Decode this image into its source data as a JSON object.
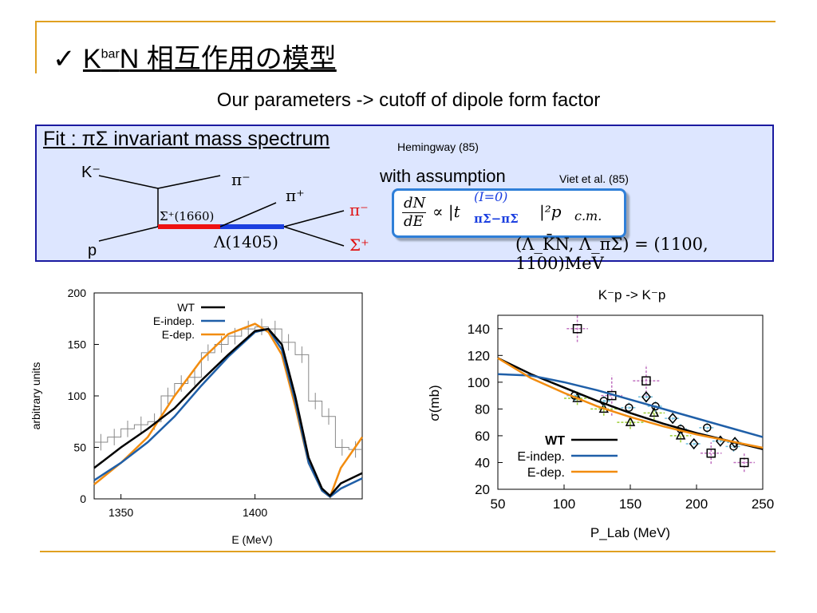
{
  "slide": {
    "check": "✓",
    "title_k": "K",
    "title_sup": "bar",
    "title_rest": "N 相互作用の模型",
    "subtitle": "Our parameters -> cutoff of dipole form factor"
  },
  "fitbox": {
    "heading": "Fit  : πΣ invariant mass spectrum",
    "ref1": "Hemingway (85)",
    "ref2": "Viet et al. (85)",
    "assumption": "with assumption",
    "formula_lhs_num": "dN",
    "formula_lhs_den": "dE",
    "formula_prop": "∝ |t",
    "formula_sup": "(I=0)",
    "formula_sub": "πΣ−πΣ",
    "formula_rest": "|²p",
    "formula_cm": "c.m.",
    "params": "(Λ_K̄N, Λ_πΣ) = (1100, 1100)MeV",
    "diagram": {
      "kminus": "K⁻",
      "p": "p",
      "piminus_top": "π⁻",
      "piplus": "π⁺",
      "sigma1660": "Σ⁺(1660)",
      "lambda1405": "Λ(1405)",
      "piminus_out": "π⁻",
      "sigmaplus_out": "Σ⁺"
    }
  },
  "colors": {
    "wt": "#000000",
    "eindep": "#1f5fa8",
    "edep": "#f28c0f",
    "accent": "#e0a020",
    "box": "#dde6ff"
  },
  "chart_data": [
    {
      "type": "line",
      "xlabel": "E (MeV)",
      "ylabel": "arbitrary units",
      "xlim": [
        1340,
        1440
      ],
      "ylim": [
        0,
        200
      ],
      "xticks": [
        1350,
        1400
      ],
      "yticks": [
        0,
        50,
        100,
        150,
        200
      ],
      "legend": "top-left",
      "series": [
        {
          "name": "WT",
          "x": [
            1340,
            1350,
            1360,
            1370,
            1380,
            1390,
            1400,
            1405,
            1410,
            1415,
            1420,
            1425,
            1428,
            1432,
            1440
          ],
          "y": [
            30,
            50,
            68,
            88,
            115,
            140,
            163,
            165,
            150,
            100,
            40,
            10,
            3,
            15,
            25
          ]
        },
        {
          "name": "E-indep.",
          "x": [
            1340,
            1350,
            1360,
            1370,
            1380,
            1390,
            1400,
            1405,
            1410,
            1415,
            1420,
            1425,
            1428,
            1432,
            1440
          ],
          "y": [
            18,
            35,
            55,
            80,
            110,
            138,
            162,
            165,
            145,
            95,
            35,
            8,
            2,
            10,
            20
          ]
        },
        {
          "name": "E-dep.",
          "x": [
            1340,
            1350,
            1360,
            1370,
            1380,
            1390,
            1400,
            1405,
            1410,
            1415,
            1420,
            1425,
            1428,
            1432,
            1440
          ],
          "y": [
            14,
            35,
            60,
            100,
            135,
            160,
            170,
            162,
            140,
            90,
            35,
            8,
            2,
            30,
            60
          ]
        }
      ],
      "histogram": {
        "edges": [
          1340,
          1345,
          1350,
          1355,
          1360,
          1365,
          1370,
          1375,
          1380,
          1385,
          1390,
          1395,
          1400,
          1405,
          1410,
          1415,
          1420,
          1425,
          1430,
          1435,
          1440
        ],
        "values": [
          55,
          60,
          68,
          72,
          75,
          100,
          112,
          118,
          142,
          150,
          158,
          165,
          167,
          165,
          152,
          140,
          95,
          80,
          50,
          48
        ]
      }
    },
    {
      "type": "line",
      "title": "K⁻p -> K⁻p",
      "xlabel": "P_Lab (MeV)",
      "ylabel": "σ(mb)",
      "xlim": [
        50,
        250
      ],
      "ylim": [
        20,
        150
      ],
      "xticks": [
        50,
        100,
        150,
        200,
        250
      ],
      "yticks": [
        20,
        40,
        60,
        80,
        100,
        120,
        140
      ],
      "legend": "bottom-left",
      "series": [
        {
          "name": "WT",
          "x": [
            50,
            75,
            100,
            125,
            150,
            175,
            200,
            225,
            250
          ],
          "y": [
            118,
            106,
            96,
            86,
            77,
            69,
            62,
            56,
            50
          ]
        },
        {
          "name": "E-indep.",
          "x": [
            50,
            75,
            100,
            125,
            150,
            175,
            200,
            225,
            250
          ],
          "y": [
            106,
            105,
            100,
            94,
            87,
            80,
            73,
            66,
            59
          ]
        },
        {
          "name": "E-dep.",
          "x": [
            50,
            75,
            100,
            125,
            150,
            175,
            200,
            225,
            250
          ],
          "y": [
            118,
            103,
            92,
            82,
            74,
            67,
            61,
            56,
            51
          ]
        }
      ],
      "points": [
        {
          "marker": "square",
          "x": 110,
          "y": 140,
          "ex": 8,
          "ey": 10,
          "color": "#c070c0"
        },
        {
          "marker": "square",
          "x": 136,
          "y": 90,
          "ex": 8,
          "ey": 15,
          "color": "#c070c0"
        },
        {
          "marker": "square",
          "x": 162,
          "y": 101,
          "ex": 10,
          "ey": 12,
          "color": "#c070c0"
        },
        {
          "marker": "square",
          "x": 211,
          "y": 47,
          "ex": 8,
          "ey": 8,
          "color": "#c070c0"
        },
        {
          "marker": "square",
          "x": 236,
          "y": 40,
          "ex": 8,
          "ey": 7,
          "color": "#c070c0"
        },
        {
          "marker": "triangle",
          "x": 110,
          "y": 88,
          "ex": 10,
          "ey": 5,
          "color": "#9acd32"
        },
        {
          "marker": "triangle",
          "x": 130,
          "y": 80,
          "ex": 10,
          "ey": 5,
          "color": "#9acd32"
        },
        {
          "marker": "triangle",
          "x": 150,
          "y": 70,
          "ex": 10,
          "ey": 5,
          "color": "#9acd32"
        },
        {
          "marker": "triangle",
          "x": 168,
          "y": 77,
          "ex": 8,
          "ey": 5,
          "color": "#9acd32"
        },
        {
          "marker": "triangle",
          "x": 188,
          "y": 60,
          "ex": 8,
          "ey": 5,
          "color": "#9acd32"
        },
        {
          "marker": "circle",
          "x": 108,
          "y": 90,
          "ex": 6,
          "ey": 4,
          "color": "#70c0e0"
        },
        {
          "marker": "circle",
          "x": 130,
          "y": 86,
          "ex": 6,
          "ey": 4,
          "color": "#70c0e0"
        },
        {
          "marker": "circle",
          "x": 149,
          "y": 81,
          "ex": 6,
          "ey": 4,
          "color": "#70c0e0"
        },
        {
          "marker": "circle",
          "x": 169,
          "y": 82,
          "ex": 6,
          "ey": 4,
          "color": "#70c0e0"
        },
        {
          "marker": "circle",
          "x": 188,
          "y": 65,
          "ex": 6,
          "ey": 4,
          "color": "#70c0e0"
        },
        {
          "marker": "circle",
          "x": 208,
          "y": 66,
          "ex": 6,
          "ey": 4,
          "color": "#70c0e0"
        },
        {
          "marker": "circle",
          "x": 228,
          "y": 52,
          "ex": 6,
          "ey": 4,
          "color": "#70c0e0"
        },
        {
          "marker": "diamond",
          "x": 162,
          "y": 89,
          "ex": 6,
          "ey": 4,
          "color": "#70c0e0"
        },
        {
          "marker": "diamond",
          "x": 182,
          "y": 73,
          "ex": 6,
          "ey": 4,
          "color": "#70c0e0"
        },
        {
          "marker": "diamond",
          "x": 198,
          "y": 54,
          "ex": 6,
          "ey": 4,
          "color": "#70c0e0"
        },
        {
          "marker": "diamond",
          "x": 218,
          "y": 56,
          "ex": 6,
          "ey": 4,
          "color": "#70c0e0"
        },
        {
          "marker": "diamond",
          "x": 229,
          "y": 55,
          "ex": 6,
          "ey": 4,
          "color": "#70c0e0"
        }
      ]
    }
  ]
}
